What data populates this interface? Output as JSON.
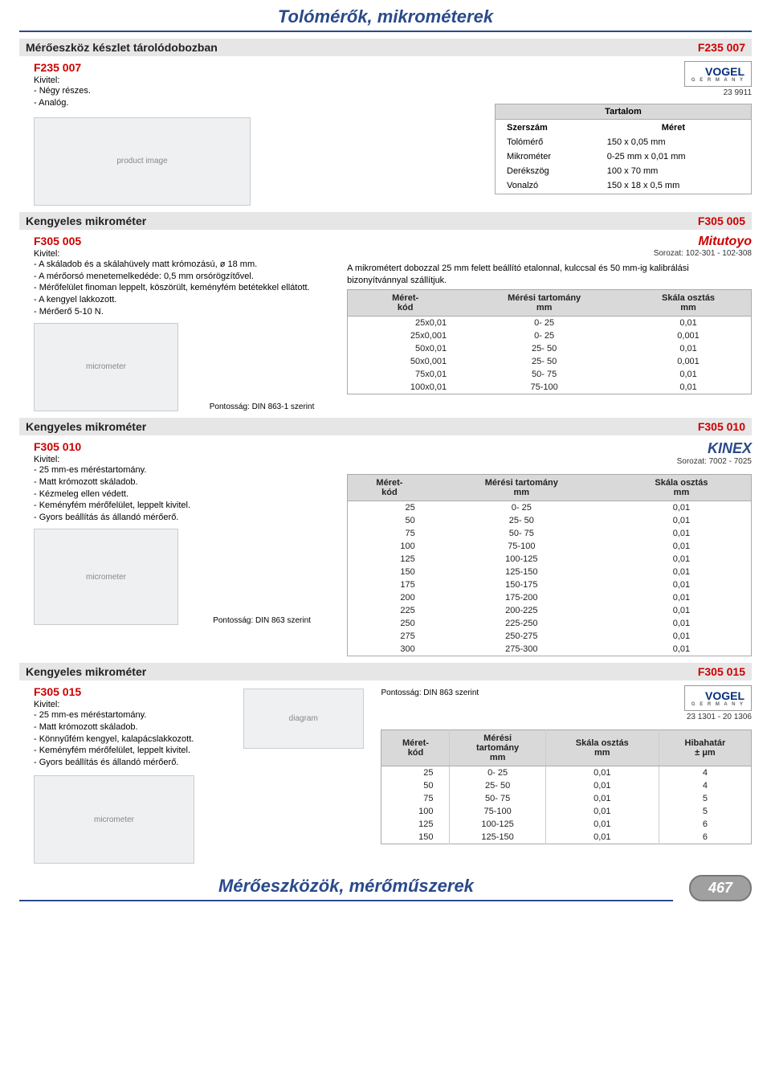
{
  "page_top_title": "Tolómérők, mikrométerek",
  "page_bottom_title": "Mérőeszközök, mérőműszerek",
  "page_number": "467",
  "s1": {
    "bar_title": "Mérőeszköz készlet tárolódobozban",
    "bar_code": "F235 007",
    "product_code": "F235 007",
    "kivitel_label": "Kivitel:",
    "bullets": [
      "- Négy részes.",
      "- Analóg."
    ],
    "brand_note": "23 9911",
    "brand": "VOGEL",
    "brand_sub": "G E R M A N Y",
    "tartalom_title": "Tartalom",
    "tartalom_head": [
      "Szerszám",
      "Méret"
    ],
    "tartalom_rows": [
      [
        "Tolómérő",
        "150 x 0,05 mm"
      ],
      [
        "Mikrométer",
        "0-25 mm x 0,01 mm"
      ],
      [
        "Derékszög",
        "100 x 70 mm"
      ],
      [
        "Vonalzó",
        "150 x 18 x 0,5 mm"
      ]
    ]
  },
  "s2": {
    "bar_title": "Kengyeles mikrométer",
    "bar_code": "F305 005",
    "product_code": "F305 005",
    "kivitel_label": "Kivitel:",
    "bullets": [
      "- A skáladob és a skálahüvely matt krómozású, ø 18 mm.",
      "- A mérőorsó menetemelkedéde: 0,5 mm orsórögzítővel.",
      "- Mérőfelület finoman leppelt, köszörült, keményfém betétekkel ellátott.",
      "- A kengyel lakkozott.",
      "- Mérőerő 5-10 N."
    ],
    "caption": "Pontosság: DIN 863-1 szerint",
    "brand": "Mitutoyo",
    "brand_note": "Sorozat: 102-301 - 102-308",
    "desc": "A mikrométert dobozzal 25 mm felett beállító etalonnal, kulccsal és 50 mm-ig kalibrálási bizonyítvánnyal szállítjuk.",
    "head": [
      "Méret-\nkód",
      "Mérési tartomány\nmm",
      "Skála osztás\nmm"
    ],
    "rows": [
      [
        "25x0,01",
        "0-  25",
        "0,01"
      ],
      [
        "25x0,001",
        "0-  25",
        "0,001"
      ],
      [
        "50x0,01",
        "25-  50",
        "0,01"
      ],
      [
        "50x0,001",
        "25-  50",
        "0,001"
      ],
      [
        "75x0,01",
        "50-  75",
        "0,01"
      ],
      [
        "100x0,01",
        "75-100",
        "0,01"
      ]
    ]
  },
  "s3": {
    "bar_title": "Kengyeles mikrométer",
    "bar_code": "F305 010",
    "product_code": "F305 010",
    "kivitel_label": "Kivitel:",
    "bullets": [
      "- 25 mm-es méréstartomány.",
      "- Matt krómozott skáladob.",
      "- Kézmeleg ellen védett.",
      "- Keményfém mérőfelület, leppelt kivitel.",
      "- Gyors beállítás ás állandó mérőerő."
    ],
    "caption": "Pontosság: DIN 863 szerint",
    "brand": "KINEX",
    "brand_note": "Sorozat: 7002 - 7025",
    "head": [
      "Méret-\nkód",
      "Mérési tartomány\nmm",
      "Skála osztás\nmm"
    ],
    "rows": [
      [
        "25",
        "0-  25",
        "0,01"
      ],
      [
        "50",
        "25-  50",
        "0,01"
      ],
      [
        "75",
        "50-  75",
        "0,01"
      ],
      [
        "100",
        "75-100",
        "0,01"
      ],
      [
        "125",
        "100-125",
        "0,01"
      ],
      [
        "150",
        "125-150",
        "0,01"
      ],
      [
        "175",
        "150-175",
        "0,01"
      ],
      [
        "200",
        "175-200",
        "0,01"
      ],
      [
        "225",
        "200-225",
        "0,01"
      ],
      [
        "250",
        "225-250",
        "0,01"
      ],
      [
        "275",
        "250-275",
        "0,01"
      ],
      [
        "300",
        "275-300",
        "0,01"
      ]
    ]
  },
  "s4": {
    "bar_title": "Kengyeles mikrométer",
    "bar_code": "F305 015",
    "product_code": "F305 015",
    "kivitel_label": "Kivitel:",
    "bullets": [
      "- 25 mm-es méréstartomány.",
      "- Matt krómozott skáladob.",
      "- Könnyűfém kengyel, kalapácslakkozott.",
      "- Keményfém mérőfelület, leppelt kivitel.",
      "- Gyors beállítás és állandó mérőerő."
    ],
    "caption": "Pontosság: DIN 863 szerint",
    "brand": "VOGEL",
    "brand_sub": "G E R M A N Y",
    "brand_note": "23 1301 - 20 1306",
    "head": [
      "Méret-\nkód",
      "Mérési\ntartomány\nmm",
      "Skála osztás\nmm",
      "Hibahatár\n± μm"
    ],
    "rows": [
      [
        "25",
        "0-  25",
        "0,01",
        "4"
      ],
      [
        "50",
        "25-  50",
        "0,01",
        "4"
      ],
      [
        "75",
        "50-  75",
        "0,01",
        "5"
      ],
      [
        "100",
        "75-100",
        "0,01",
        "5"
      ],
      [
        "125",
        "100-125",
        "0,01",
        "6"
      ],
      [
        "150",
        "125-150",
        "0,01",
        "6"
      ]
    ]
  }
}
